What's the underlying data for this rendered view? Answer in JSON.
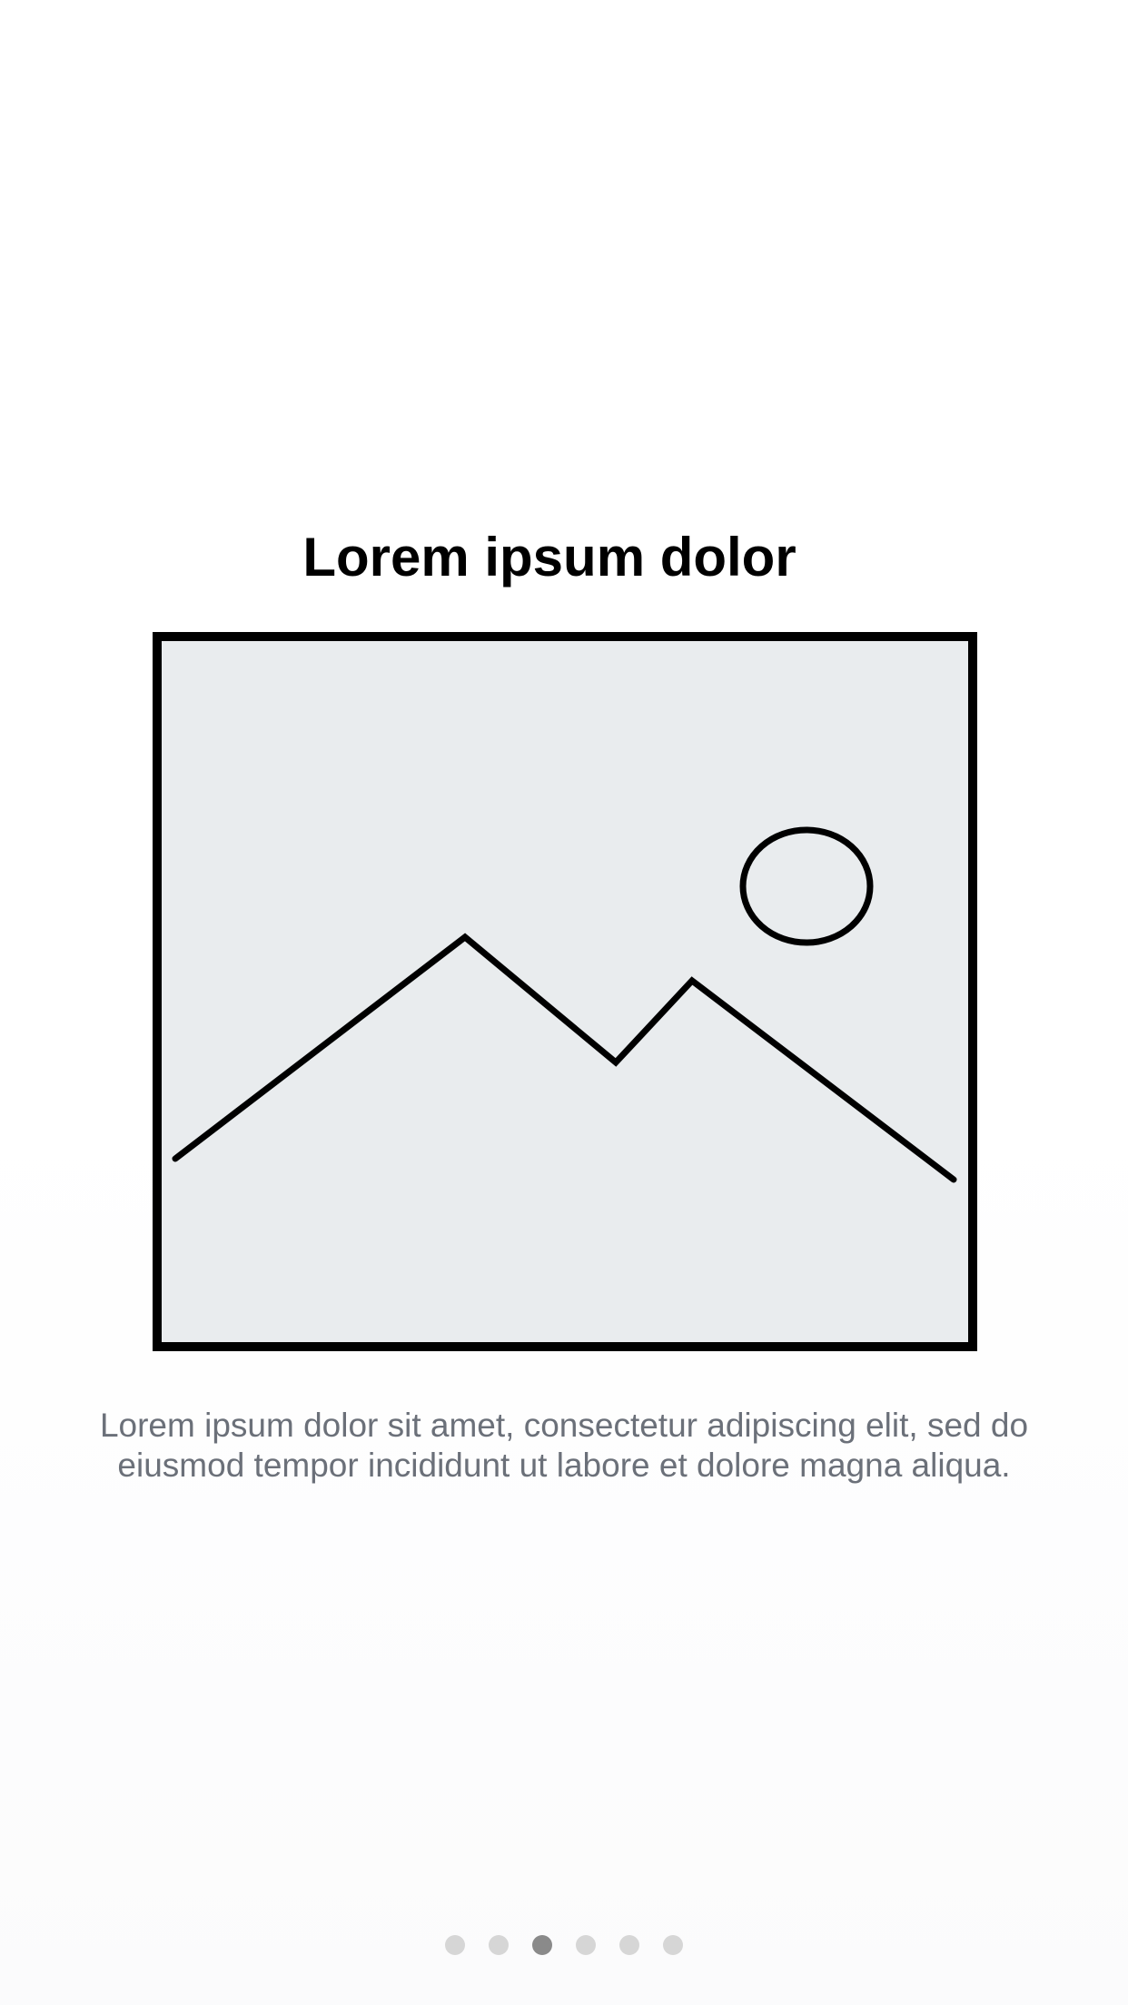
{
  "onboarding": {
    "title": "Lorem ipsum dolor",
    "description": "Lorem ipsum dolor sit amet, consectetur adipiscing elit, sed do eiusmod tempor incididunt ut labore et dolore magna aliqua.",
    "illustration_icon": "image-placeholder-icon"
  },
  "pager": {
    "total_pages": 6,
    "current_page": 3
  },
  "colors": {
    "title": "#000000",
    "description": "#6b7079",
    "image_fill": "#e9ecee",
    "image_stroke": "#000000",
    "dot_active": "#8a8a8a",
    "dot_inactive": "#d6d6d6"
  }
}
